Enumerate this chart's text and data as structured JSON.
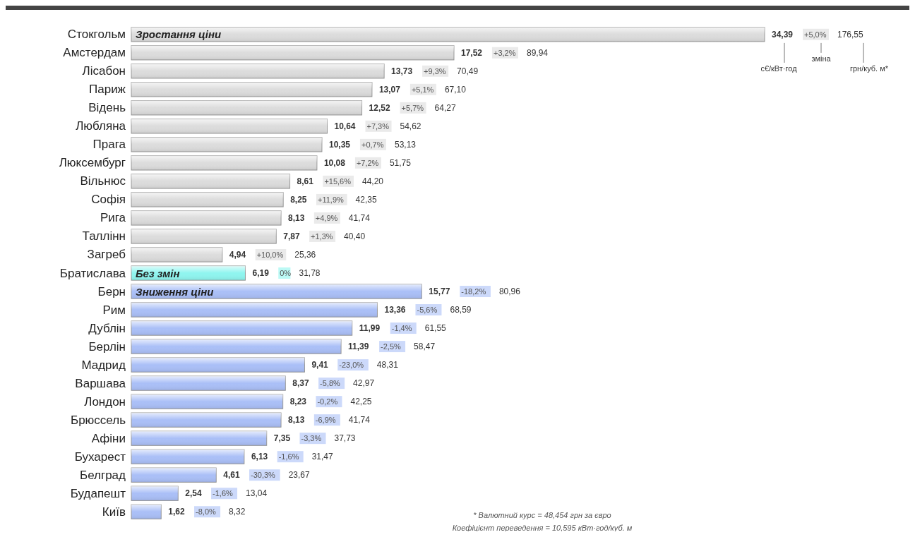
{
  "chart_data": {
    "type": "bar",
    "orientation": "horizontal",
    "categories": [
      "Стокгольм",
      "Амстердам",
      "Лісабон",
      "Париж",
      "Відень",
      "Любляна",
      "Прага",
      "Люксембург",
      "Вільнюс",
      "Софія",
      "Рига",
      "Таллінн",
      "Загреб",
      "Братислава",
      "Берн",
      "Рим",
      "Дублін",
      "Берлін",
      "Мадрид",
      "Варшава",
      "Лондон",
      "Брюссель",
      "Афіни",
      "Бухарест",
      "Белград",
      "Будапешт",
      "Київ"
    ],
    "values": [
      34.39,
      17.52,
      13.73,
      13.07,
      12.52,
      10.64,
      10.35,
      10.08,
      8.61,
      8.25,
      8.13,
      7.87,
      4.94,
      6.19,
      15.77,
      13.36,
      11.99,
      11.39,
      9.41,
      8.37,
      8.23,
      8.13,
      7.35,
      6.13,
      4.61,
      2.54,
      1.62
    ],
    "value_labels": [
      "34,39",
      "17,52",
      "13,73",
      "13,07",
      "12,52",
      "10,64",
      "10,35",
      "10,08",
      "8,61",
      "8,25",
      "8,13",
      "7,87",
      "4,94",
      "6,19",
      "15,77",
      "13,36",
      "11,99",
      "11,39",
      "9,41",
      "8,37",
      "8,23",
      "8,13",
      "7,35",
      "6,13",
      "4,61",
      "2,54",
      "1,62"
    ],
    "colors": [
      "#dcdcdc",
      "#dcdcdc",
      "#dcdcdc",
      "#dcdcdc",
      "#dcdcdc",
      "#dcdcdc",
      "#dcdcdc",
      "#dcdcdc",
      "#dcdcdc",
      "#dcdcdc",
      "#dcdcdc",
      "#dcdcdc",
      "#dcdcdc",
      "#8ff5ef",
      "#aabff7",
      "#aabff7",
      "#aabff7",
      "#aabff7",
      "#aabff7",
      "#aabff7",
      "#aabff7",
      "#aabff7",
      "#aabff7",
      "#aabff7",
      "#aabff7",
      "#aabff7",
      "#aabff7"
    ],
    "annotations": [
      {
        "text": "Зростання ціни",
        "y": "Стокгольм"
      },
      {
        "text": "Без змін",
        "y": "Братислава"
      },
      {
        "text": "Зниження ціни",
        "y": "Берн"
      },
      "c€/кВт·год",
      "зміна",
      "грн/куб. м*",
      "* Валютний курс = 48,454 грн за євро",
      "Коефіцієнт переведення = 10,595 кВт·год/куб. м",
      "+5,0%",
      "176,55",
      "+3,2%",
      "89,94",
      "+9,3%",
      "70,49",
      "+5,1%",
      "67,10",
      "+5,7%",
      "64,27",
      "+7,3%",
      "54,62",
      "+0,7%",
      "53,13",
      "+7,2%",
      "51,75",
      "+15,6%",
      "44,20",
      "+11,9%",
      "42,35",
      "+4,9%",
      "41,74",
      "+1,3%",
      "40,40",
      "+10,0%",
      "25,36",
      "0%",
      "31,78",
      "-18,2%",
      "80,96",
      "-5,6%",
      "68,59",
      "-1,4%",
      "61,55",
      "-2,5%",
      "58,47",
      "-23,0%",
      "48,31",
      "-5,8%",
      "42,97",
      "-0,2%",
      "42,25",
      "-6,9%",
      "41,74",
      "-3,3%",
      "37,73",
      "-1,6%",
      "31,47",
      "-30,3%",
      "23,67",
      "-1,6%",
      "13,04",
      "-8,0%",
      "8,32"
    ]
  }
}
